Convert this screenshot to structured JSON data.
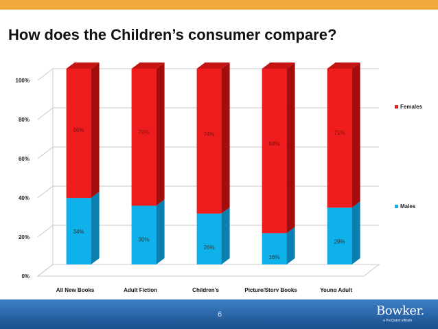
{
  "page": {
    "title": "How does the Children’s consumer compare?",
    "page_number": "6",
    "logo_text": "Bowker.",
    "logo_subtext": "a ProQuest affiliate"
  },
  "colors": {
    "accent_bar": "#f2a93b",
    "females": "#ee1c1c",
    "females_side": "#a50d0d",
    "females_top": "#c41414",
    "males": "#0fb1ea",
    "males_side": "#0a7fb0",
    "footer": "#1e5a9a"
  },
  "chart_data": {
    "type": "bar",
    "stacked": true,
    "three_d": true,
    "categories": [
      "All New Books",
      "Adult Fiction",
      "Children’s",
      "Picture/Story Books",
      "Young Adult"
    ],
    "series": [
      {
        "name": "Males",
        "values": [
          34,
          30,
          26,
          16,
          29
        ],
        "labels": [
          "34%",
          "30%",
          "26%",
          "16%",
          "29%"
        ]
      },
      {
        "name": "Females",
        "values": [
          66,
          70,
          74,
          84,
          71
        ],
        "labels": [
          "66%",
          "70%",
          "74%",
          "84%",
          "71%"
        ]
      }
    ],
    "ylim": [
      0,
      100
    ],
    "yticks": [
      0,
      20,
      40,
      60,
      80,
      100
    ],
    "ytick_labels": [
      "0%",
      "20%",
      "40%",
      "60%",
      "80%",
      "100%"
    ],
    "grid": true,
    "legend": "right",
    "legend_entries": [
      "Females",
      "Males"
    ]
  }
}
